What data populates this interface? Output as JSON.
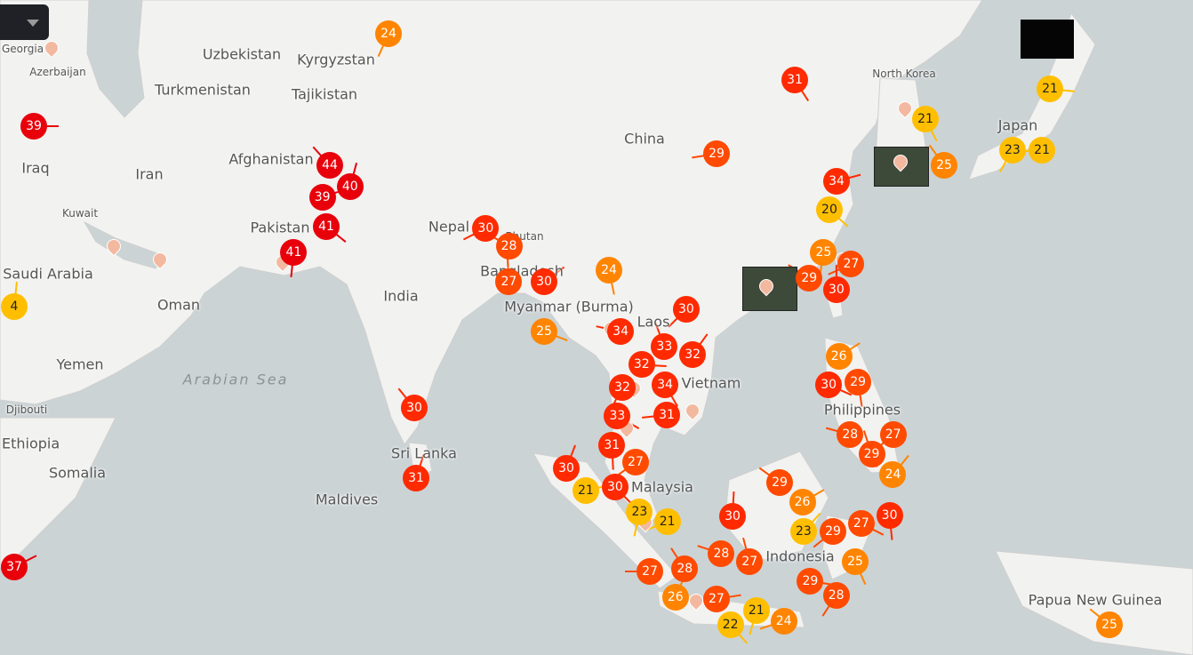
{
  "map": {
    "colors": {
      "water": "#cbd3d5",
      "land": "#f2f2f0",
      "border": "#d0d0d0"
    },
    "labels": [
      {
        "text": "Uzbekistan",
        "type": "country"
      },
      {
        "text": "Kyrgyzstan",
        "type": "country"
      },
      {
        "text": "Turkmenistan",
        "type": "country"
      },
      {
        "text": "Tajikistan",
        "type": "country"
      },
      {
        "text": "China",
        "type": "country"
      },
      {
        "text": "Afghanistan",
        "type": "country"
      },
      {
        "text": "Iran",
        "type": "country"
      },
      {
        "text": "Iraq",
        "type": "country"
      },
      {
        "text": "Kuwait",
        "type": "small"
      },
      {
        "text": "North Korea",
        "type": "small"
      },
      {
        "text": "Japan",
        "type": "country"
      },
      {
        "text": "Nepal",
        "type": "country"
      },
      {
        "text": "Bhutan",
        "type": "small"
      },
      {
        "text": "Pakistan",
        "type": "country"
      },
      {
        "text": "Bangladesh",
        "type": "country"
      },
      {
        "text": "Saudi Arabia",
        "type": "country"
      },
      {
        "text": "Oman",
        "type": "country"
      },
      {
        "text": "India",
        "type": "country"
      },
      {
        "text": "Myanmar (Burma)",
        "type": "country"
      },
      {
        "text": "Laos",
        "type": "country"
      },
      {
        "text": "Yemen",
        "type": "country"
      },
      {
        "text": "Arabian Sea",
        "type": "sea"
      },
      {
        "text": "Vietnam",
        "type": "country"
      },
      {
        "text": "Philippines",
        "type": "country"
      },
      {
        "text": "Djibouti",
        "type": "small"
      },
      {
        "text": "Somalia",
        "type": "country"
      },
      {
        "text": "Sri Lanka",
        "type": "country"
      },
      {
        "text": "Malaysia",
        "type": "country"
      },
      {
        "text": "Maldives",
        "type": "country"
      },
      {
        "text": "Indonesia",
        "type": "country"
      },
      {
        "text": "Papua New Guinea",
        "type": "country"
      },
      {
        "text": "Azerbaijan",
        "type": "small"
      },
      {
        "text": "Georgia",
        "type": "small"
      },
      {
        "text": "Ethiopia",
        "type": "country"
      }
    ]
  },
  "temperature_scale": {
    "hot": "#e8000b",
    "warm": "#ff2a00",
    "mild": "#ff4a00",
    "cool": "#ff8400",
    "cooler": "#ffbf00"
  },
  "markers": [
    39,
    31,
    24,
    29,
    44,
    40,
    39,
    41,
    41,
    30,
    28,
    27,
    30,
    25,
    24,
    30,
    34,
    33,
    32,
    32,
    34,
    32,
    31,
    30,
    31,
    34,
    20,
    25,
    27,
    29,
    30,
    26,
    30,
    29,
    27,
    28,
    29,
    24,
    21,
    21,
    23,
    21,
    25,
    30,
    21,
    30,
    23,
    21,
    29,
    30,
    26,
    27,
    30,
    29,
    28,
    27,
    23,
    29,
    25,
    28,
    27,
    28,
    26,
    27,
    22,
    21,
    24,
    25,
    4,
    37,
    33,
    31,
    27
  ],
  "controls": {
    "dropdown_icon": "caret-down-icon"
  }
}
